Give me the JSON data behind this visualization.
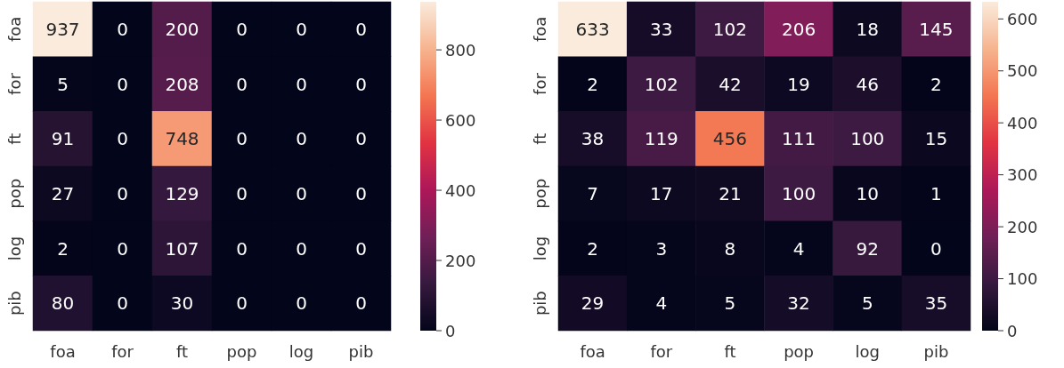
{
  "chart_data": [
    {
      "type": "heatmap",
      "categories": [
        "foa",
        "for",
        "ft",
        "pop",
        "log",
        "pib"
      ],
      "y_categories": [
        "foa",
        "for",
        "ft",
        "pop",
        "log",
        "pib"
      ],
      "cells": [
        [
          937,
          0,
          200,
          0,
          0,
          0
        ],
        [
          5,
          0,
          208,
          0,
          0,
          0
        ],
        [
          91,
          0,
          748,
          0,
          0,
          0
        ],
        [
          27,
          0,
          129,
          0,
          0,
          0
        ],
        [
          2,
          0,
          107,
          0,
          0,
          0
        ],
        [
          80,
          0,
          30,
          0,
          0,
          0
        ]
      ],
      "clim": [
        0,
        937
      ],
      "cticks": [
        0,
        200,
        400,
        600,
        800
      ],
      "data_labels": true
    },
    {
      "type": "heatmap",
      "categories": [
        "foa",
        "for",
        "ft",
        "pop",
        "log",
        "pib"
      ],
      "y_categories": [
        "foa",
        "for",
        "ft",
        "pop",
        "log",
        "pib"
      ],
      "cells": [
        [
          633,
          33,
          102,
          206,
          18,
          145
        ],
        [
          2,
          102,
          42,
          19,
          46,
          2
        ],
        [
          38,
          119,
          456,
          111,
          100,
          15
        ],
        [
          7,
          17,
          21,
          100,
          10,
          1
        ],
        [
          2,
          3,
          8,
          4,
          92,
          0
        ],
        [
          29,
          4,
          5,
          32,
          5,
          35
        ]
      ],
      "clim": [
        0,
        633
      ],
      "cticks": [
        0,
        100,
        200,
        300,
        400,
        500,
        600
      ],
      "data_labels": true
    }
  ]
}
